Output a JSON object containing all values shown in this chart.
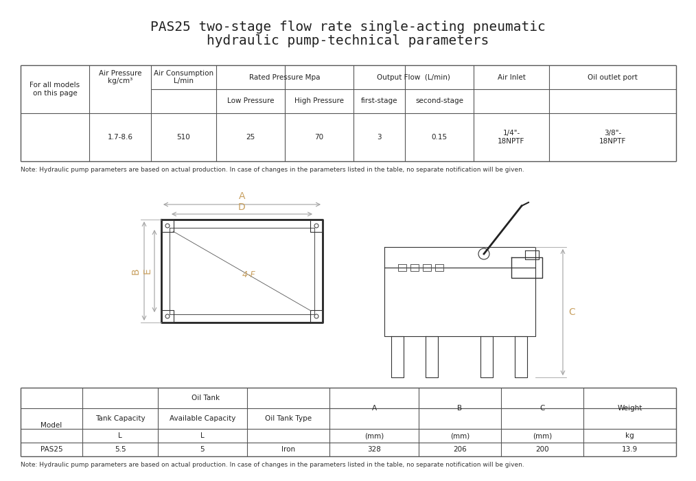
{
  "title_line1": "PAS25 two-stage flow rate single-acting pneumatic",
  "title_line2": "hydraulic pump-technical parameters",
  "bg_color": "#ffffff",
  "title_fontsize": 14,
  "table1": {
    "col_headers_row1": [
      "",
      "Air Pressure\nkg/cm³",
      "Air Consumption\nL/min",
      "Rated Pressure Mpa",
      "",
      "Output Flow  (L/min)",
      "",
      "Air Inlet",
      "Oil outlet port"
    ],
    "col_headers_row2": [
      "For all models\non this page",
      "",
      "",
      "Low Pressure",
      "High Pressure",
      "first-stage",
      "second-stage",
      "",
      ""
    ],
    "data_row": [
      "",
      "1.7-8.6",
      "510",
      "25",
      "70",
      "3",
      "0.15",
      "1/4\"-\n18NPTF",
      "3/8\"-\n18NPTF"
    ],
    "note": "Note: Hydraulic pump parameters are based on actual production. In case of changes in the parameters listed in the table, no separate notification will be given."
  },
  "table2": {
    "col_headers_row1": [
      "",
      "Oil Tank",
      "",
      "",
      "A",
      "B",
      "C",
      "Weight"
    ],
    "col_headers_row2": [
      "Model",
      "Tank Capacity",
      "Available Capacity",
      "Oil Tank Type",
      "",
      "",
      "",
      ""
    ],
    "col_headers_row3": [
      "",
      "L",
      "L",
      "",
      "(mm)",
      "(mm)",
      "(mm)",
      "kg"
    ],
    "data_row": [
      "PAS25",
      "5.5",
      "5",
      "Iron",
      "328",
      "206",
      "200",
      "13.9"
    ],
    "note": "Note: Hydraulic pump parameters are based on actual production. In case of changes in the parameters listed in the table, no separate notification will be given."
  },
  "dim_color": "#a0a0a0",
  "dim_label_color": "#c8a060",
  "line_color": "#333333",
  "table_line_color": "#555555"
}
